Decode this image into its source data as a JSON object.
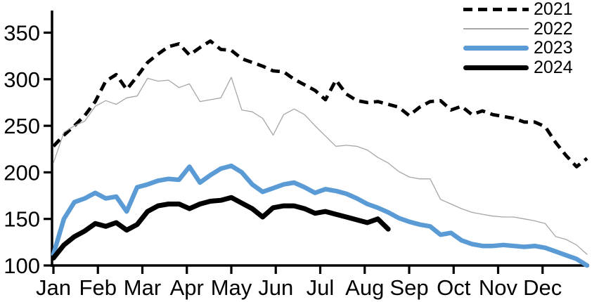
{
  "chart_data": {
    "type": "line",
    "title": "",
    "subtitle": "",
    "grid": "off",
    "plot_background": "#ffffff",
    "x_axis": {
      "tick_labels": [
        "Jan",
        "Feb",
        "Mar",
        "Apr",
        "May",
        "Jun",
        "Jul",
        "Aug",
        "Sep",
        "Oct",
        "Nov",
        "Dec"
      ],
      "resolution": "weekly (52 points per full year)"
    },
    "y_axis": {
      "ticks": [
        100,
        150,
        200,
        250,
        300,
        350
      ],
      "ylim": [
        100,
        375
      ]
    },
    "legend": {
      "position": "top-right",
      "entries": [
        "2021",
        "2022",
        "2023",
        "2024"
      ]
    },
    "series": [
      {
        "name": "2021",
        "line_style": "dashed",
        "color": "#000000",
        "stroke_width": 4.8,
        "dash": "13 8",
        "values": [
          228,
          240,
          250,
          261,
          276,
          298,
          305,
          289,
          303,
          318,
          327,
          335,
          338,
          326,
          334,
          341,
          332,
          331,
          322,
          318,
          314,
          309,
          308,
          300,
          294,
          288,
          278,
          299,
          284,
          277,
          275,
          276,
          273,
          270,
          261,
          270,
          276,
          277,
          267,
          271,
          262,
          266,
          262,
          260,
          258,
          254,
          254,
          249,
          232,
          218,
          206,
          215
        ]
      },
      {
        "name": "2022",
        "line_style": "solid",
        "color": "#a6a6a6",
        "stroke_width": 1.3,
        "dash": null,
        "values": [
          210,
          243,
          250,
          255,
          271,
          277,
          273,
          280,
          282,
          301,
          298,
          299,
          291,
          295,
          276,
          278,
          280,
          302,
          267,
          265,
          258,
          240,
          262,
          268,
          262,
          250,
          239,
          228,
          229,
          228,
          224,
          216,
          210,
          201,
          195,
          193,
          193,
          171,
          166,
          161,
          157,
          155,
          153,
          152,
          152,
          150,
          148,
          145,
          131,
          128,
          122,
          112
        ]
      },
      {
        "name": "2023",
        "line_style": "solid",
        "color": "#5b9bd5",
        "stroke_width": 6.5,
        "dash": null,
        "values": [
          112,
          150,
          168,
          172,
          178,
          172,
          174,
          158,
          184,
          187,
          191,
          193,
          192,
          206,
          189,
          197,
          204,
          207,
          200,
          187,
          179,
          183,
          187,
          189,
          184,
          178,
          182,
          180,
          177,
          172,
          166,
          162,
          157,
          151,
          147,
          144,
          142,
          133,
          135,
          127,
          123,
          121,
          121,
          122,
          121,
          120,
          121,
          119,
          115,
          111,
          107,
          100
        ]
      },
      {
        "name": "2024",
        "line_style": "solid",
        "color": "#000000",
        "stroke_width": 7,
        "dash": null,
        "values": [
          108,
          122,
          131,
          137,
          145,
          142,
          146,
          138,
          144,
          158,
          164,
          166,
          166,
          161,
          166,
          169,
          170,
          173,
          167,
          161,
          152,
          162,
          164,
          164,
          161,
          156,
          158,
          155,
          152,
          149,
          146,
          150,
          139
        ]
      }
    ]
  }
}
